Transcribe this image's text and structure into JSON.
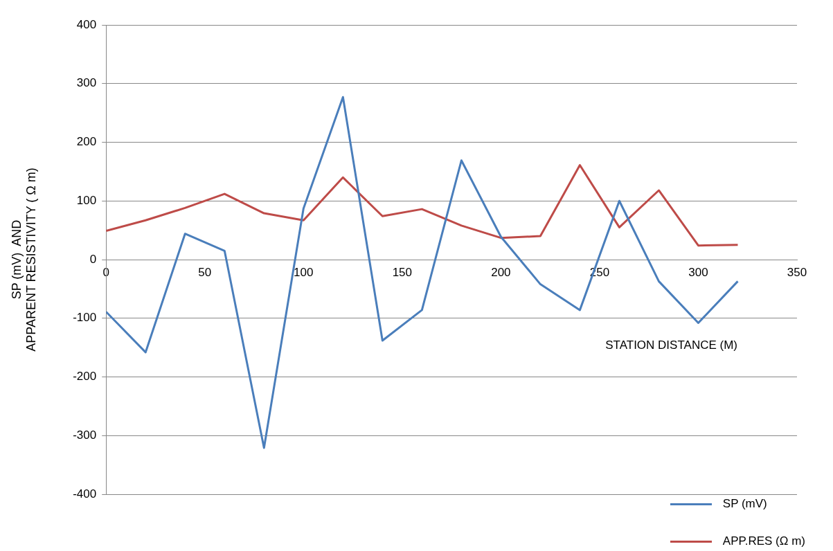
{
  "chart_data": {
    "type": "line",
    "xlabel": "STATION DISTANCE (M)",
    "ylabel": "SP (mV)  AND\nAPPARENT RESISTIVITY ( Ω m)",
    "x": [
      0,
      20,
      40,
      60,
      80,
      100,
      120,
      140,
      160,
      180,
      200,
      220,
      240,
      260,
      280,
      300,
      320
    ],
    "series": [
      {
        "name": "SP (mV)",
        "color": "#4a7ebb",
        "values": [
          -89,
          -158,
          44,
          15,
          -321,
          87,
          277,
          -138,
          -86,
          169,
          39,
          -42,
          -86,
          100,
          -37,
          -108,
          -37
        ]
      },
      {
        "name": "APP.RES (Ω m)",
        "color": "#be4b48",
        "values": [
          49,
          67,
          88,
          112,
          79,
          67,
          140,
          74,
          86,
          58,
          37,
          40,
          161,
          55,
          118,
          24,
          25
        ]
      }
    ],
    "xlim": [
      0,
      350
    ],
    "xticks": [
      0,
      50,
      100,
      150,
      200,
      250,
      300,
      350
    ],
    "ylim": [
      -400,
      400
    ],
    "yticks": [
      -400,
      -300,
      -200,
      -100,
      0,
      100,
      200,
      300,
      400
    ],
    "grid": "y",
    "legend": "bottom right",
    "marker": "none",
    "line_style": "solid"
  }
}
